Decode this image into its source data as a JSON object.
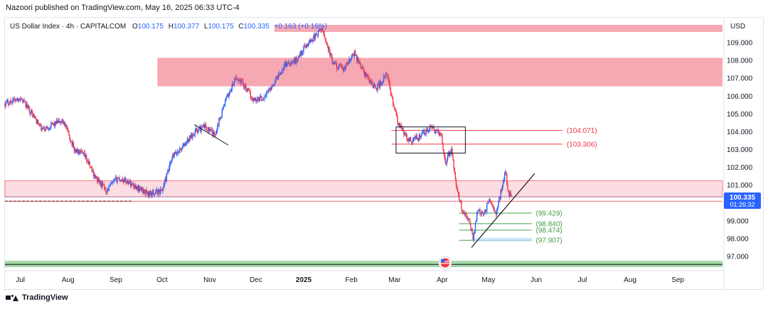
{
  "header": {
    "published": "Nazoori published on TradingView.com, May 16, 2025 06:33 UTC-4"
  },
  "legend": {
    "symbol": "US Dollar Index · 4h · CAPITALCOM",
    "open_label": "O",
    "open": "100.175",
    "high_label": "H",
    "high": "100.377",
    "low_label": "L",
    "low": "100.175",
    "close_label": "C",
    "close": "100.335",
    "change": "+0.163 (+0.16%)"
  },
  "currency": "USD",
  "price_badge": {
    "price": "100.335",
    "countdown": "01:26:32"
  },
  "footer": {
    "brand": "TradingView"
  },
  "colors": {
    "up": "#2962ff",
    "down": "#f23645",
    "zone": "#f7a9b3",
    "zone_light": "#fcdde1",
    "support": "#a5d6a7",
    "level_red": "#f23645",
    "level_green": "#43a047"
  },
  "chart_data": {
    "type": "candlestick",
    "title": "US Dollar Index · 4h · CAPITALCOM",
    "ylim": [
      96.4,
      110.0
    ],
    "y_ticks": [
      "109.000",
      "108.000",
      "107.000",
      "106.000",
      "105.000",
      "104.000",
      "103.000",
      "102.000",
      "101.000",
      "99.000",
      "98.000",
      "97.000"
    ],
    "x_ticks": [
      {
        "label": "Jul",
        "bold": false
      },
      {
        "label": "Aug",
        "bold": false
      },
      {
        "label": "Sep",
        "bold": false
      },
      {
        "label": "Oct",
        "bold": false
      },
      {
        "label": "Nov",
        "bold": false
      },
      {
        "label": "Dec",
        "bold": false
      },
      {
        "label": "2025",
        "bold": true
      },
      {
        "label": "Feb",
        "bold": false
      },
      {
        "label": "Mar",
        "bold": false
      },
      {
        "label": "Apr",
        "bold": false
      },
      {
        "label": "May",
        "bold": false
      },
      {
        "label": "Jun",
        "bold": false
      },
      {
        "label": "Jul",
        "bold": false
      },
      {
        "label": "Aug",
        "bold": false
      },
      {
        "label": "Sep",
        "bold": false
      }
    ],
    "price_path": [
      [
        "2024-06-21",
        105.6
      ],
      [
        "2024-07-01",
        105.9
      ],
      [
        "2024-07-08",
        105.1
      ],
      [
        "2024-07-15",
        104.1
      ],
      [
        "2024-07-22",
        104.4
      ],
      [
        "2024-07-29",
        104.6
      ],
      [
        "2024-08-05",
        103.0
      ],
      [
        "2024-08-12",
        102.6
      ],
      [
        "2024-08-19",
        101.4
      ],
      [
        "2024-08-26",
        100.7
      ],
      [
        "2024-09-02",
        101.4
      ],
      [
        "2024-09-09",
        101.2
      ],
      [
        "2024-09-16",
        100.8
      ],
      [
        "2024-09-23",
        100.5
      ],
      [
        "2024-10-01",
        100.7
      ],
      [
        "2024-10-08",
        102.6
      ],
      [
        "2024-10-15",
        103.2
      ],
      [
        "2024-10-22",
        104.0
      ],
      [
        "2024-10-29",
        104.3
      ],
      [
        "2024-11-04",
        103.8
      ],
      [
        "2024-11-11",
        105.7
      ],
      [
        "2024-11-18",
        107.0
      ],
      [
        "2024-11-22",
        106.8
      ],
      [
        "2024-11-29",
        105.8
      ],
      [
        "2024-12-06",
        105.9
      ],
      [
        "2024-12-13",
        106.8
      ],
      [
        "2024-12-20",
        107.8
      ],
      [
        "2024-12-27",
        108.0
      ],
      [
        "2025-01-03",
        108.9
      ],
      [
        "2025-01-10",
        109.5
      ],
      [
        "2025-01-13",
        109.8
      ],
      [
        "2025-01-20",
        107.8
      ],
      [
        "2025-01-27",
        107.5
      ],
      [
        "2025-02-03",
        108.4
      ],
      [
        "2025-02-10",
        107.2
      ],
      [
        "2025-02-17",
        106.4
      ],
      [
        "2025-02-24",
        107.2
      ],
      [
        "2025-03-03",
        104.5
      ],
      [
        "2025-03-10",
        103.5
      ],
      [
        "2025-03-17",
        103.7
      ],
      [
        "2025-03-24",
        104.2
      ],
      [
        "2025-03-31",
        103.9
      ],
      [
        "2025-04-03",
        102.3
      ],
      [
        "2025-04-07",
        103.0
      ],
      [
        "2025-04-10",
        100.9
      ],
      [
        "2025-04-14",
        99.6
      ],
      [
        "2025-04-18",
        99.2
      ],
      [
        "2025-04-21",
        98.0
      ],
      [
        "2025-04-24",
        99.7
      ],
      [
        "2025-04-28",
        99.2
      ],
      [
        "2025-05-01",
        100.2
      ],
      [
        "2025-05-06",
        99.4
      ],
      [
        "2025-05-12",
        101.8
      ],
      [
        "2025-05-14",
        100.6
      ],
      [
        "2025-05-16",
        100.335
      ]
    ],
    "zones": [
      {
        "from_date": "2024-12-13",
        "to_date": "2025-09-30",
        "from": 109.6,
        "to": 110.0,
        "style": "zone"
      },
      {
        "from_date": "2024-09-28",
        "to_date": "2025-09-30",
        "from": 106.55,
        "to": 108.15,
        "style": "zone"
      },
      {
        "from_date": "2024-06-21",
        "to_date": "2025-09-30",
        "from": 100.35,
        "to": 101.25,
        "style": "zone_light"
      },
      {
        "from_date": "2024-06-21",
        "to_date": "2025-09-30",
        "from": 96.4,
        "to": 96.75,
        "style": "support"
      }
    ],
    "levels": [
      {
        "price": 104.071,
        "label": "(104.071)",
        "from_date": "2025-02-27",
        "to_date": "2025-06-18",
        "color": "level_red"
      },
      {
        "price": 103.306,
        "label": "(103.306)",
        "from_date": "2025-02-27",
        "to_date": "2025-06-18",
        "color": "level_red"
      },
      {
        "price": 99.429,
        "label": "(99.429)",
        "from_date": "2025-04-12",
        "to_date": "2025-05-29",
        "color": "level_green"
      },
      {
        "price": 98.84,
        "label": "(98.840)",
        "from_date": "2025-04-12",
        "to_date": "2025-05-29",
        "color": "level_green"
      },
      {
        "price": 98.474,
        "label": "(98.474)",
        "from_date": "2025-04-12",
        "to_date": "2025-05-29",
        "color": "level_green"
      },
      {
        "price": 97.907,
        "label": "(97.907)",
        "from_date": "2025-04-12",
        "to_date": "2025-05-29",
        "color": "level_green"
      }
    ]
  }
}
